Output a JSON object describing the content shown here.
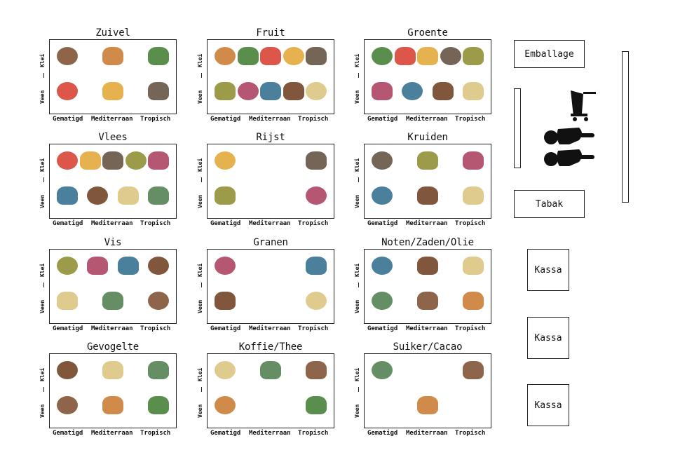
{
  "axis": {
    "y_top": "Klei",
    "y_bottom": "Veen",
    "x": [
      "Gematigd",
      "Mediterraan",
      "Tropisch"
    ]
  },
  "categories": [
    {
      "title": "Zuivel",
      "items": [
        "cow-icon",
        "buffalo-icon",
        "bull-icon",
        "sheep-icon",
        "yak-icon",
        "goat-icon"
      ]
    },
    {
      "title": "Fruit",
      "items": [
        "berries-icon",
        "pear-icon",
        "orange-icon",
        "melon-icon",
        "apple-icon",
        "grapes-icon",
        "mango-icon",
        "banana-icon",
        "avocado-icon",
        "currant-icon"
      ]
    },
    {
      "title": "Groente",
      "items": [
        "carrot-icon",
        "broccoli-icon",
        "eggplant-icon",
        "yam-icon",
        "cucumber-icon",
        "lettuce-icon",
        "tomato-icon",
        "pepper-icon",
        "pumpkin-icon"
      ]
    },
    {
      "title": "Vlees",
      "items": [
        "cow-icon",
        "deer-icon",
        "pig-icon",
        "buffalo-icon",
        "bull-icon",
        "boar-icon",
        "yak-icon",
        "kangaroo-icon",
        "goat-icon"
      ]
    },
    {
      "title": "Rijst",
      "items": [
        "wild-rice-icon",
        "brown-rice-icon",
        "rice-icon",
        "white-rice-icon"
      ]
    },
    {
      "title": "Kruiden",
      "items": [
        "herb-icon",
        "pepper-seed-icon",
        "clove-icon",
        "basil-icon",
        "lemongrass-icon",
        "chili-icon"
      ]
    },
    {
      "title": "Vis",
      "items": [
        "eel-icon",
        "pike-icon",
        "carp-icon",
        "tilapia-icon",
        "herring-icon",
        "mussel-icon",
        "snapper-icon"
      ]
    },
    {
      "title": "Granen",
      "items": [
        "grain-icon",
        "millet-icon",
        "oats-icon",
        "flour-icon"
      ]
    },
    {
      "title": "Noten/Zaden/Olie",
      "items": [
        "almond-icon",
        "peanut-icon",
        "cashew-icon",
        "olive-icon",
        "pecan-icon",
        "palm-fruit-icon"
      ]
    },
    {
      "title": "Gevogelte",
      "items": [
        "duck-icon",
        "goose-icon",
        "partridge-icon",
        "chicken-icon",
        "turkey-icon",
        "ostrich-icon"
      ]
    },
    {
      "title": "Koffie/Thee",
      "items": [
        "tea-leaf-icon",
        "black-tea-icon",
        "coffee-bean-icon",
        "green-tea-icon",
        "herbal-tea-icon"
      ]
    },
    {
      "title": "Suiker/Cacao",
      "items": [
        "sugar-beet-icon",
        "cacao-bean-icon",
        "sugar-cane-icon"
      ]
    }
  ],
  "floor": {
    "emballage": "Emballage",
    "tabak": "Tabak",
    "kassa": [
      "Kassa",
      "Kassa",
      "Kassa"
    ],
    "entrance_icon": "shoppers-with-cart-icon"
  }
}
